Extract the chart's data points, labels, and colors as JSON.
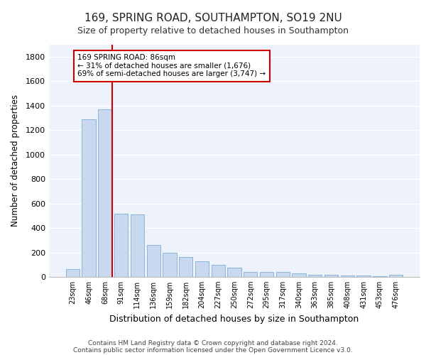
{
  "title": "169, SPRING ROAD, SOUTHAMPTON, SO19 2NU",
  "subtitle": "Size of property relative to detached houses in Southampton",
  "xlabel": "Distribution of detached houses by size in Southampton",
  "ylabel": "Number of detached properties",
  "bar_color": "#c8d9ef",
  "bar_edge_color": "#7bafd4",
  "categories": [
    "23sqm",
    "46sqm",
    "68sqm",
    "91sqm",
    "114sqm",
    "136sqm",
    "159sqm",
    "182sqm",
    "204sqm",
    "227sqm",
    "250sqm",
    "272sqm",
    "295sqm",
    "317sqm",
    "340sqm",
    "363sqm",
    "385sqm",
    "408sqm",
    "431sqm",
    "453sqm",
    "476sqm"
  ],
  "values": [
    63,
    1290,
    1370,
    515,
    510,
    260,
    195,
    165,
    130,
    100,
    75,
    40,
    40,
    38,
    28,
    18,
    18,
    10,
    10,
    5,
    18
  ],
  "ylim": [
    0,
    1900
  ],
  "yticks": [
    0,
    200,
    400,
    600,
    800,
    1000,
    1200,
    1400,
    1600,
    1800
  ],
  "vline_color": "#cc0000",
  "annotation_text": "169 SPRING ROAD: 86sqm\n← 31% of detached houses are smaller (1,676)\n69% of semi-detached houses are larger (3,747) →",
  "annotation_box_color": "#ffffff",
  "annotation_box_edge": "#cc0000",
  "footer_line1": "Contains HM Land Registry data © Crown copyright and database right 2024.",
  "footer_line2": "Contains public sector information licensed under the Open Government Licence v3.0.",
  "background_color": "#eef2fa",
  "grid_color": "#ffffff"
}
